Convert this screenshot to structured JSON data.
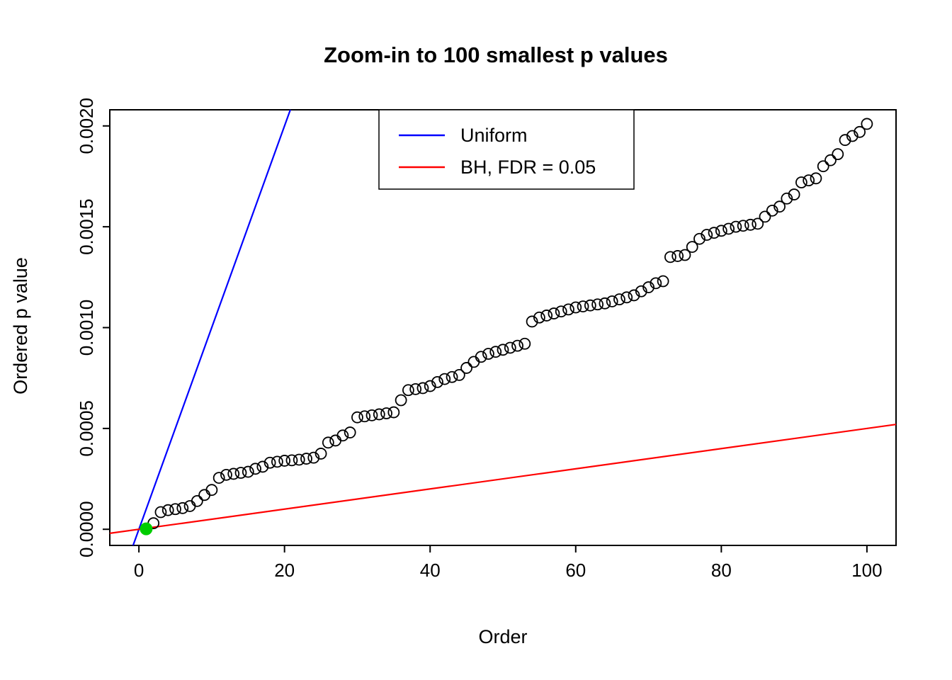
{
  "chart_data": {
    "type": "scatter",
    "title": "Zoom-in to 100 smallest p values",
    "xlabel": "Order",
    "ylabel": "Ordered p value",
    "xlim": [
      -4,
      104
    ],
    "ylim": [
      -8e-05,
      0.00208
    ],
    "x_ticks": [
      0,
      20,
      40,
      60,
      80,
      100
    ],
    "y_ticks": [
      0.0,
      0.0005,
      0.001,
      0.0015,
      0.002
    ],
    "y_tick_labels": [
      "0.0000",
      "0.0005",
      "0.0010",
      "0.0015",
      "0.0020"
    ],
    "grid": false,
    "point_style": "open-circle",
    "point_color": "#000000",
    "series_name": "ordered-p-values",
    "y": [
      2e-06,
      3e-05,
      8.5e-05,
      9.5e-05,
      0.0001,
      0.000105,
      0.000115,
      0.00014,
      0.00017,
      0.000195,
      0.000255,
      0.00027,
      0.000275,
      0.00028,
      0.000285,
      0.0003,
      0.00031,
      0.00033,
      0.000335,
      0.00034,
      0.000342,
      0.000345,
      0.00035,
      0.000355,
      0.000375,
      0.00043,
      0.00044,
      0.000465,
      0.00048,
      0.000555,
      0.00056,
      0.000565,
      0.00057,
      0.000575,
      0.00058,
      0.00064,
      0.00069,
      0.000695,
      0.0007,
      0.00071,
      0.00073,
      0.000745,
      0.000755,
      0.000765,
      0.0008,
      0.00083,
      0.000855,
      0.00087,
      0.00088,
      0.00089,
      0.0009,
      0.00091,
      0.00092,
      0.00103,
      0.00105,
      0.00106,
      0.00107,
      0.00108,
      0.00109,
      0.0011,
      0.001105,
      0.00111,
      0.001115,
      0.00112,
      0.00113,
      0.00114,
      0.00115,
      0.00116,
      0.00118,
      0.0012,
      0.00122,
      0.00123,
      0.00135,
      0.001355,
      0.00136,
      0.0014,
      0.00144,
      0.00146,
      0.00147,
      0.00148,
      0.00149,
      0.0015,
      0.001505,
      0.00151,
      0.001515,
      0.00155,
      0.00158,
      0.0016,
      0.00164,
      0.00166,
      0.00172,
      0.00173,
      0.00174,
      0.0018,
      0.00183,
      0.00186,
      0.00193,
      0.00195,
      0.00197,
      0.00201
    ],
    "highlighted_point": {
      "x": 1,
      "y": 2e-06,
      "color": "#00CD00",
      "style": "filled-circle"
    },
    "lines": [
      {
        "name": "Uniform",
        "color": "#0000FF",
        "slope": 0.0001,
        "intercept": 0
      },
      {
        "name": "BH, FDR = 0.05",
        "color": "#FF0000",
        "slope": 5e-06,
        "intercept": 0
      }
    ],
    "legend": {
      "position": "top-center",
      "entries": [
        "Uniform",
        "BH, FDR = 0.05"
      ]
    }
  }
}
